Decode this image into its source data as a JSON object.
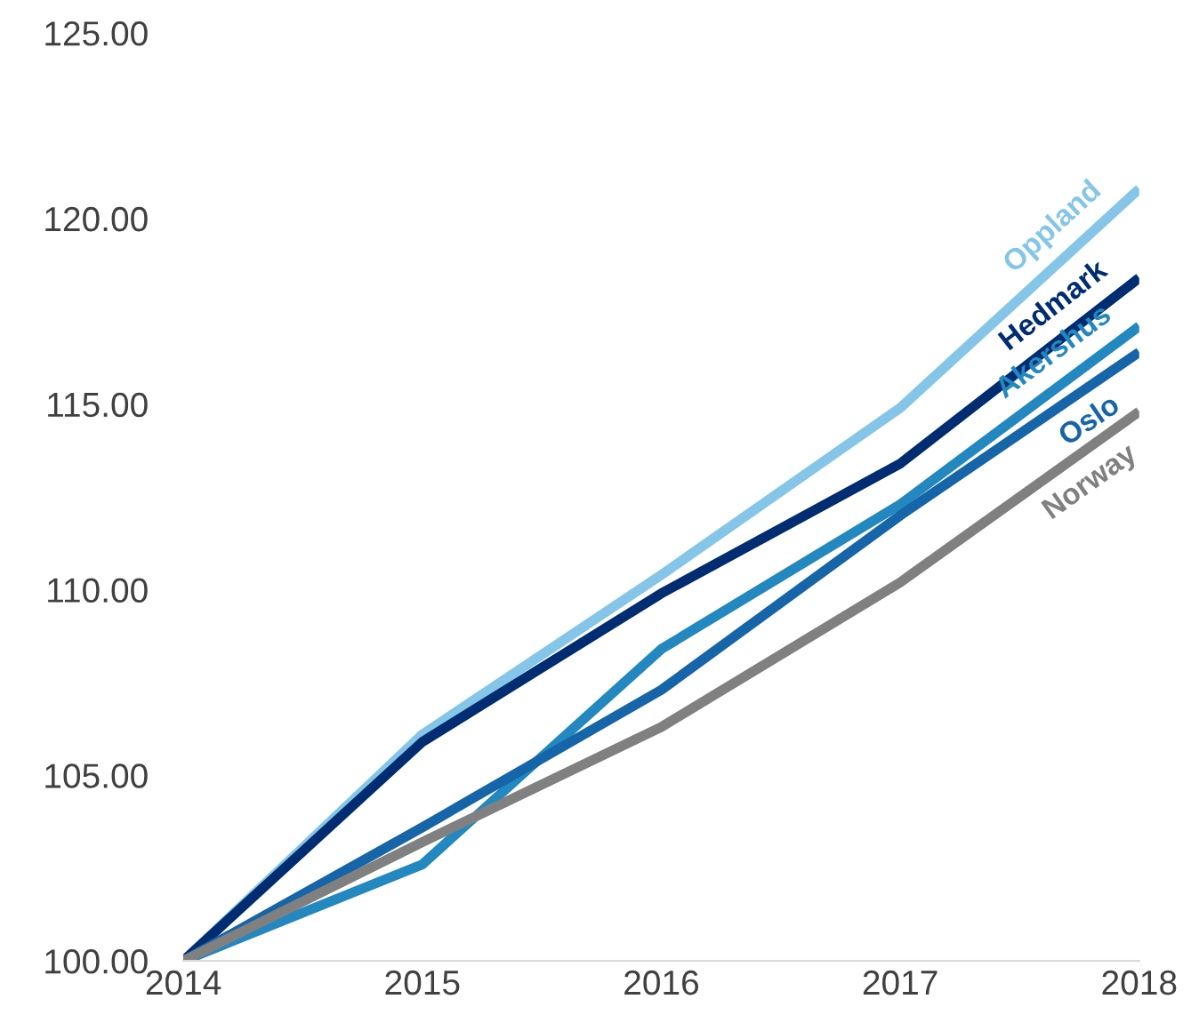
{
  "chart_data": {
    "type": "line",
    "x": [
      2014,
      2015,
      2016,
      2017,
      2018
    ],
    "xlim": [
      2014,
      2018
    ],
    "xticks": [
      2014,
      2015,
      2016,
      2017,
      2018
    ],
    "ylim": [
      100,
      125
    ],
    "yticks": [
      {
        "value": 100,
        "label": "100.00"
      },
      {
        "value": 105,
        "label": "105.00"
      },
      {
        "value": 110,
        "label": "110.00"
      },
      {
        "value": 115,
        "label": "115.00"
      },
      {
        "value": 120,
        "label": "120.00"
      },
      {
        "value": 125,
        "label": "125.00"
      }
    ],
    "grid": false,
    "legend": false,
    "marker": "none",
    "line_style": "solid",
    "series": [
      {
        "name": "Oppland",
        "color": "#85c6e8",
        "values": [
          100,
          106.1,
          110.4,
          114.9,
          120.8
        ]
      },
      {
        "name": "Hedmark",
        "color": "#002d72",
        "values": [
          100,
          105.9,
          109.9,
          113.4,
          118.4
        ]
      },
      {
        "name": "Akershus",
        "color": "#2387c0",
        "values": [
          100,
          102.6,
          108.4,
          112.3,
          117.1
        ]
      },
      {
        "name": "Oslo",
        "color": "#1565a8",
        "values": [
          100,
          103.6,
          107.3,
          112.0,
          116.4
        ]
      },
      {
        "name": "Norway",
        "color": "#808080",
        "values": [
          100,
          103.2,
          106.3,
          110.2,
          114.8
        ]
      }
    ]
  }
}
